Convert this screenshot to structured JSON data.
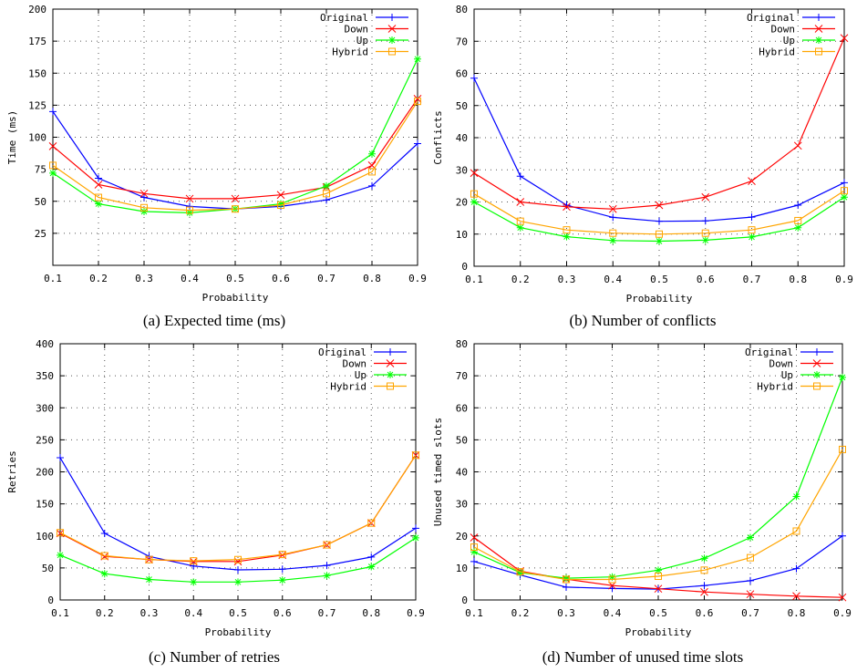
{
  "figure": {
    "panels": [
      {
        "caption": "(a) Expected time (ms)"
      },
      {
        "caption": "(b) Number of conflicts"
      },
      {
        "caption": "(c) Number of retries"
      },
      {
        "caption": "(d) Number of unused time slots"
      }
    ]
  },
  "chart_data": [
    {
      "type": "line",
      "xlabel": "Probability",
      "ylabel": "Time (ms)",
      "xlim": [
        0.1,
        0.9
      ],
      "ylim": [
        0,
        200
      ],
      "yticks": [
        25,
        50,
        75,
        100,
        125,
        150,
        175,
        200
      ],
      "xticks": [
        0.1,
        0.2,
        0.3,
        0.4,
        0.5,
        0.6,
        0.7,
        0.8,
        0.9
      ],
      "grid": true,
      "legend": "top-right",
      "x": [
        0.1,
        0.2,
        0.3,
        0.4,
        0.5,
        0.6,
        0.7,
        0.8,
        0.9
      ],
      "series": [
        {
          "name": "Original",
          "color": "#0000ff",
          "marker": "plus",
          "values": [
            120,
            68,
            53,
            46,
            44,
            46,
            51,
            62,
            95
          ]
        },
        {
          "name": "Down",
          "color": "#ff0000",
          "marker": "x",
          "values": [
            93,
            63,
            56,
            52,
            52,
            55,
            61,
            78,
            130
          ]
        },
        {
          "name": "Up",
          "color": "#00ff00",
          "marker": "star",
          "values": [
            72,
            48,
            42,
            41,
            44,
            48,
            62,
            87,
            161
          ]
        },
        {
          "name": "Hybrid",
          "color": "#ffa500",
          "marker": "square",
          "values": [
            78,
            53,
            45,
            43,
            44,
            47,
            56,
            73,
            128
          ]
        }
      ]
    },
    {
      "type": "line",
      "xlabel": "Probability",
      "ylabel": "Conflicts",
      "xlim": [
        0.1,
        0.9
      ],
      "ylim": [
        0,
        80
      ],
      "yticks": [
        0,
        10,
        20,
        30,
        40,
        50,
        60,
        70,
        80
      ],
      "xticks": [
        0.1,
        0.2,
        0.3,
        0.4,
        0.5,
        0.6,
        0.7,
        0.8,
        0.9
      ],
      "grid": true,
      "legend": "top-right",
      "x": [
        0.1,
        0.2,
        0.3,
        0.4,
        0.5,
        0.6,
        0.7,
        0.8,
        0.9
      ],
      "series": [
        {
          "name": "Original",
          "color": "#0000ff",
          "marker": "plus",
          "values": [
            58.5,
            28,
            19,
            15.2,
            14,
            14.1,
            15.3,
            19,
            26
          ]
        },
        {
          "name": "Down",
          "color": "#ff0000",
          "marker": "x",
          "values": [
            29,
            20,
            18.5,
            17.8,
            19,
            21.5,
            26.5,
            37.5,
            71
          ]
        },
        {
          "name": "Up",
          "color": "#00ff00",
          "marker": "star",
          "values": [
            20,
            12,
            9.2,
            8,
            7.8,
            8.1,
            9.1,
            12,
            21.5
          ]
        },
        {
          "name": "Hybrid",
          "color": "#ffa500",
          "marker": "square",
          "values": [
            22.5,
            14,
            11.3,
            10.3,
            10,
            10.3,
            11.3,
            14.2,
            23.5
          ]
        }
      ]
    },
    {
      "type": "line",
      "xlabel": "Probability",
      "ylabel": "Retries",
      "xlim": [
        0.1,
        0.9
      ],
      "ylim": [
        0,
        400
      ],
      "yticks": [
        0,
        50,
        100,
        150,
        200,
        250,
        300,
        350,
        400
      ],
      "xticks": [
        0.1,
        0.2,
        0.3,
        0.4,
        0.5,
        0.6,
        0.7,
        0.8,
        0.9
      ],
      "grid": true,
      "legend": "top-right",
      "x": [
        0.1,
        0.2,
        0.3,
        0.4,
        0.5,
        0.6,
        0.7,
        0.8,
        0.9
      ],
      "series": [
        {
          "name": "Original",
          "color": "#0000ff",
          "marker": "plus",
          "values": [
            222,
            104,
            68,
            53,
            47,
            48,
            54,
            67,
            112
          ]
        },
        {
          "name": "Down",
          "color": "#ff0000",
          "marker": "x",
          "values": [
            104,
            68,
            63,
            60,
            60,
            70,
            86,
            120,
            226
          ]
        },
        {
          "name": "Up",
          "color": "#00ff00",
          "marker": "star",
          "values": [
            70,
            41,
            32,
            28,
            28,
            31,
            38,
            52,
            97
          ]
        },
        {
          "name": "Hybrid",
          "color": "#ffa500",
          "marker": "square",
          "values": [
            105,
            69,
            63,
            61,
            63,
            71,
            86,
            120,
            226
          ]
        }
      ]
    },
    {
      "type": "line",
      "xlabel": "Probability",
      "ylabel": "Unused timed slots",
      "xlim": [
        0.1,
        0.9
      ],
      "ylim": [
        0,
        80
      ],
      "yticks": [
        0,
        10,
        20,
        30,
        40,
        50,
        60,
        70,
        80
      ],
      "xticks": [
        0.1,
        0.2,
        0.3,
        0.4,
        0.5,
        0.6,
        0.7,
        0.8,
        0.9
      ],
      "grid": true,
      "legend": "top-right",
      "x": [
        0.1,
        0.2,
        0.3,
        0.4,
        0.5,
        0.6,
        0.7,
        0.8,
        0.9
      ],
      "series": [
        {
          "name": "Original",
          "color": "#0000ff",
          "marker": "plus",
          "values": [
            12,
            7.8,
            4,
            3.6,
            3.4,
            4.5,
            6,
            9.8,
            20
          ]
        },
        {
          "name": "Down",
          "color": "#ff0000",
          "marker": "x",
          "values": [
            19.5,
            9,
            6.5,
            4.5,
            3.5,
            2.5,
            1.8,
            1.2,
            0.8
          ]
        },
        {
          "name": "Up",
          "color": "#00ff00",
          "marker": "star",
          "values": [
            15,
            8.5,
            6.8,
            7.2,
            9.3,
            13,
            19.5,
            32.3,
            69.5
          ]
        },
        {
          "name": "Hybrid",
          "color": "#ffa500",
          "marker": "square",
          "values": [
            16.5,
            8.8,
            6.4,
            6.4,
            7.4,
            9.3,
            13.2,
            21.5,
            47
          ]
        }
      ]
    }
  ]
}
